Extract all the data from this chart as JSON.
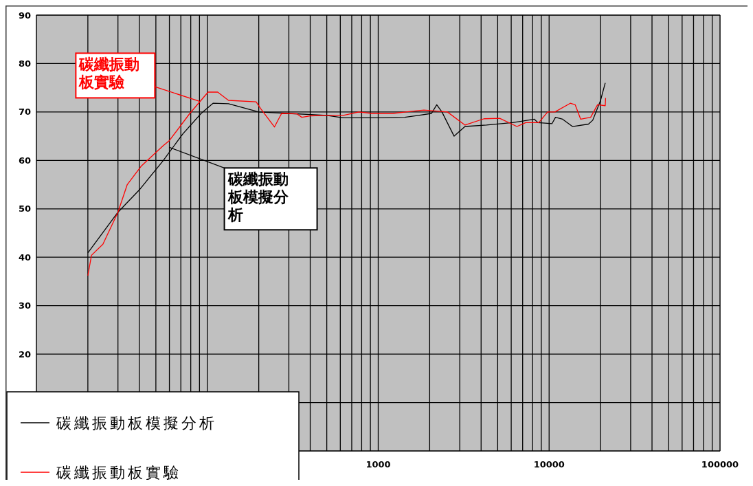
{
  "chart_data": {
    "type": "line",
    "log": "x",
    "grid": true,
    "legend": "bottom left",
    "xlim": [
      10,
      100000
    ],
    "ylim": [
      0,
      90
    ],
    "xticks": [
      {
        "value": 10,
        "label": null
      },
      {
        "value": 20,
        "label": null
      },
      {
        "value": 30,
        "label": null
      },
      {
        "value": 40,
        "label": null
      },
      {
        "value": 50,
        "label": null
      },
      {
        "value": 60,
        "label": null
      },
      {
        "value": 70,
        "label": null
      },
      {
        "value": 80,
        "label": null
      },
      {
        "value": 90,
        "label": null
      },
      {
        "value": 100,
        "label": null
      },
      {
        "value": 200,
        "label": null
      },
      {
        "value": 300,
        "label": null
      },
      {
        "value": 400,
        "label": null
      },
      {
        "value": 500,
        "label": null
      },
      {
        "value": 600,
        "label": null
      },
      {
        "value": 700,
        "label": null
      },
      {
        "value": 800,
        "label": null
      },
      {
        "value": 900,
        "label": null
      },
      1000,
      {
        "value": 2000,
        "label": null
      },
      {
        "value": 3000,
        "label": null
      },
      {
        "value": 4000,
        "label": null
      },
      {
        "value": 5000,
        "label": null
      },
      {
        "value": 6000,
        "label": null
      },
      {
        "value": 7000,
        "label": null
      },
      {
        "value": 8000,
        "label": null
      },
      {
        "value": 9000,
        "label": null
      },
      10000,
      {
        "value": 20000,
        "label": null
      },
      {
        "value": 30000,
        "label": null
      },
      {
        "value": 40000,
        "label": null
      },
      {
        "value": 50000,
        "label": null
      },
      {
        "value": 60000,
        "label": null
      },
      {
        "value": 70000,
        "label": null
      },
      {
        "value": 80000,
        "label": null
      },
      {
        "value": 90000,
        "label": null
      },
      100000
    ],
    "yticks": [
      {
        "value": 0,
        "label": null
      },
      {
        "value": 10,
        "label": null
      },
      20,
      30,
      40,
      50,
      60,
      70,
      80,
      90
    ],
    "line_style": "solid",
    "marker": "none",
    "series": [
      {
        "name": "碳纖振動板模擬分析",
        "color": "#000000",
        "x": [
          20,
          30,
          40,
          55,
          72,
          92,
          108,
          133,
          200,
          300,
          500,
          624,
          1000,
          1430,
          1720,
          2050,
          2200,
          2360,
          2780,
          3220,
          4300,
          6100,
          8200,
          8600,
          10400,
          10900,
          12000,
          13700,
          17000,
          18000,
          20000,
          21300
        ],
        "values": [
          40.9,
          49.3,
          53.9,
          59.9,
          65.5,
          69.7,
          71.8,
          71.7,
          70,
          69.7,
          69.3,
          68.8,
          68.8,
          68.9,
          69.3,
          69.7,
          71.5,
          70,
          65,
          67,
          67.3,
          67.8,
          68.5,
          67.8,
          67.6,
          68.9,
          68.5,
          67,
          67.5,
          68.3,
          72.4,
          76
        ]
      },
      {
        "name": "碳纖振動板實驗",
        "color": "#ff0000",
        "x": [
          20,
          21,
          24.5,
          30,
          34,
          41,
          55,
          60,
          79,
          101,
          115,
          133,
          193,
          205,
          247,
          272,
          335,
          357,
          400,
          500,
          624,
          770,
          920,
          1220,
          1450,
          1850,
          2540,
          3220,
          4160,
          5140,
          6480,
          7300,
          8700,
          9800,
          10800,
          13300,
          14200,
          15300,
          17500,
          19200,
          21300,
          21400
        ],
        "values": [
          36.2,
          40.4,
          42.7,
          49.3,
          55,
          58.8,
          63,
          64.1,
          69.7,
          74.1,
          74.1,
          72.4,
          72.1,
          70.7,
          66.9,
          69.7,
          69.6,
          68.9,
          69.2,
          69.3,
          69.3,
          70,
          69.7,
          69.7,
          70,
          70.4,
          70,
          67.3,
          68.6,
          68.7,
          67,
          67.8,
          67.8,
          70,
          70,
          71.8,
          71.5,
          68.5,
          68.9,
          71.5,
          71.3,
          72.9
        ]
      }
    ],
    "annotations": [
      {
        "text": "碳纖振動板模擬分析",
        "x": 60,
        "y": 62.7
      },
      {
        "text": "碳纖振動板實驗",
        "x": 90,
        "y": 72.2
      }
    ]
  }
}
